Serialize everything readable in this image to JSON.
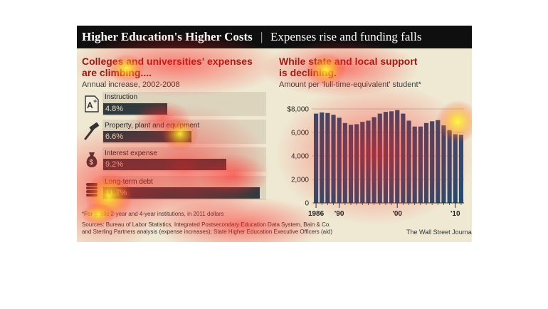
{
  "header": {
    "title_bold": "Higher Education's Higher Costs",
    "separator": "|",
    "title_rest": "Expenses rise and funding falls"
  },
  "left": {
    "heading_line1": "Colleges and universities' expenses",
    "heading_line2": "are climbing....",
    "subtitle": "Annual increase, 2002-2008",
    "icons": [
      "graded-paper-icon",
      "hammer-icon",
      "money-bag-icon",
      "coin-stack-icon"
    ]
  },
  "right": {
    "heading_line1": "While state and local support",
    "heading_line2": "is declining.",
    "subtitle": "Amount per 'full-time-equivalent' student*"
  },
  "footer": {
    "note": "*For public 2-year and 4-year institutions, in 2011 dollars",
    "sources_line1": "Sources: Bureau of Labor Statistics, Integrated Postsecondary Education Data System, Bain & Co.",
    "sources_line2": "and Sterling Partners analysis (expense increases); State Higher Education Executive Officers (aid)",
    "credit": "The Wall Street Journal"
  },
  "colors": {
    "title_bar": "#0f0f0f",
    "panel": "#efe8d2",
    "heading": "#8b1a10",
    "bar": "#2f3b3f",
    "column": "#294a6e"
  },
  "chart_data": [
    {
      "type": "bar",
      "orientation": "horizontal",
      "categories": [
        "Instruction",
        "Property, plant and equipment",
        "Interest expense",
        "Long-term debt"
      ],
      "values": [
        4.8,
        6.6,
        9.2,
        11.7
      ],
      "value_labels": [
        "4.8%",
        "6.6%",
        "9.2%",
        "11.7%"
      ],
      "xlim": [
        0,
        12
      ]
    },
    {
      "type": "bar",
      "x": [
        1986,
        1987,
        1988,
        1989,
        1990,
        1991,
        1992,
        1993,
        1994,
        1995,
        1996,
        1997,
        1998,
        1999,
        2000,
        2001,
        2002,
        2003,
        2004,
        2005,
        2006,
        2007,
        2008,
        2009,
        2010,
        2011
      ],
      "values": [
        7600,
        7700,
        7650,
        7500,
        7250,
        6800,
        6650,
        6700,
        6900,
        7000,
        7300,
        7600,
        7750,
        7800,
        7900,
        7600,
        7000,
        6500,
        6500,
        6800,
        6950,
        7050,
        6600,
        6200,
        5850,
        5800
      ],
      "ylim": [
        0,
        8000
      ],
      "yticks": [
        0,
        2000,
        4000,
        6000,
        8000
      ],
      "ytick_labels": [
        "0",
        "2,000",
        "4,000",
        "6,000",
        "$8,000"
      ],
      "xtick_labels": [
        {
          "at": 1986,
          "label": "1986"
        },
        {
          "at": 1990,
          "label": "'90"
        },
        {
          "at": 2000,
          "label": "'00"
        },
        {
          "at": 2010,
          "label": "'10"
        }
      ],
      "grid": true
    }
  ]
}
